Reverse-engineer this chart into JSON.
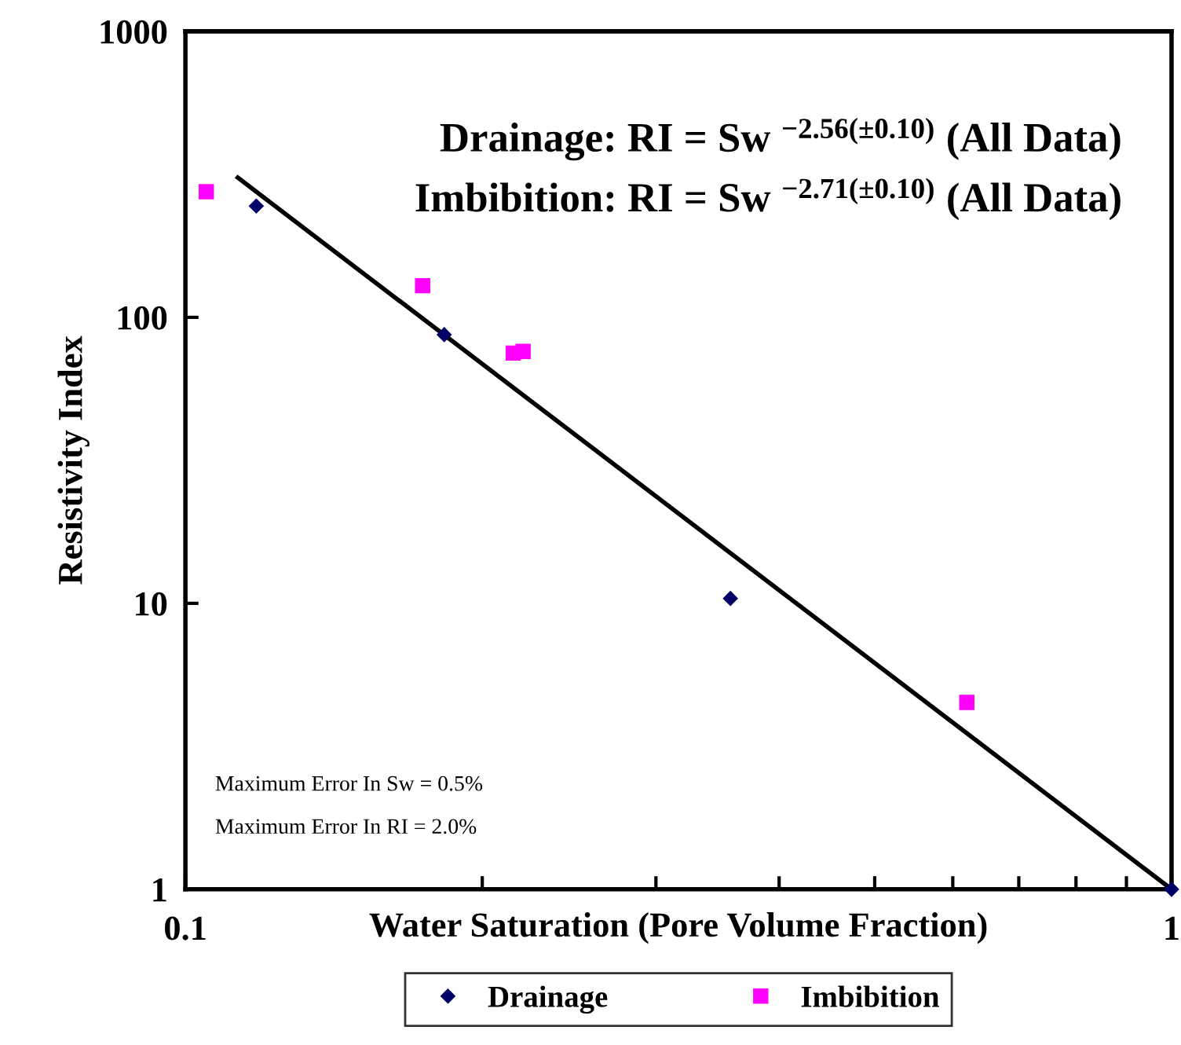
{
  "chart_data": {
    "type": "scatter",
    "xlabel": "Water Saturation (Pore Volume Fraction)",
    "ylabel": "Resistivity Index",
    "log": "xy",
    "xlim": [
      0.1,
      1
    ],
    "ylim": [
      1,
      1000
    ],
    "xticks": [
      0.1,
      {
        "value": 0.2,
        "label": null
      },
      {
        "value": 0.3,
        "label": null
      },
      {
        "value": 0.4,
        "label": null
      },
      {
        "value": 0.5,
        "label": null
      },
      {
        "value": 0.6,
        "label": null
      },
      {
        "value": 0.7,
        "label": null
      },
      {
        "value": 0.8,
        "label": null
      },
      {
        "value": 0.9,
        "label": null
      },
      1
    ],
    "yticks": [
      1,
      10,
      100,
      1000
    ],
    "grid": false,
    "legend": "bottom",
    "series": [
      {
        "name": "Drainage",
        "color": "#000066",
        "marker": "diamond",
        "x": [
          0.118,
          0.183,
          0.357,
          1.0
        ],
        "values": [
          245,
          87,
          10.4,
          1.0
        ]
      },
      {
        "name": "Imbibition",
        "color": "#ff00ff",
        "marker": "square",
        "x": [
          0.105,
          0.174,
          0.215,
          0.22,
          0.62
        ],
        "values": [
          275,
          129,
          75,
          76,
          4.5
        ]
      },
      {
        "type": "line",
        "color": "#000000",
        "marker": "none",
        "line_style": "solid",
        "x": [
          0.113,
          1.0
        ],
        "values": [
          308,
          1.0
        ]
      }
    ],
    "annotations": [
      "Drainage: RI = Sw $^{−2.56(±0.10)}$ (All Data)",
      "Imbibition: RI = Sw $^{−2.71(±0.10)}$ (All Data)",
      "Maximum Error In Sw = 0.5%",
      "Maximum Error In RI = 2.0%"
    ]
  }
}
